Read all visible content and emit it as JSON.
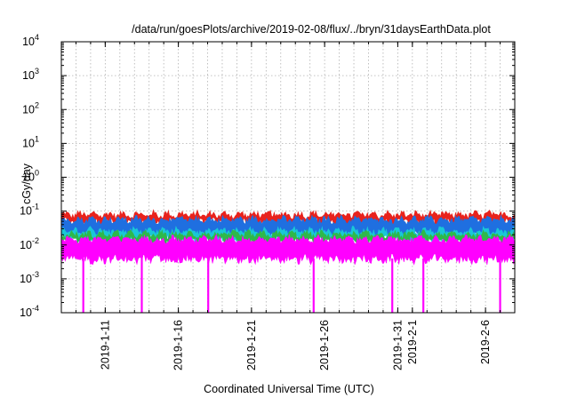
{
  "chart_data": {
    "type": "area",
    "title": "/data/run/goesPlots/archive/2019-02-08/flux/../bryn/31daysEarthData.plot",
    "xlabel": "Coordinated Universal Time (UTC)",
    "ylabel": "cGy/day",
    "yscale": "log",
    "ylim": [
      0.0001,
      10000
    ],
    "xlim": [
      "2019-01-08",
      "2019-02-08"
    ],
    "grid": true,
    "legend": "none",
    "y_ticks": [
      {
        "base": "10",
        "exp": "-4",
        "value": 0.0001
      },
      {
        "base": "10",
        "exp": "-3",
        "value": 0.001
      },
      {
        "base": "10",
        "exp": "-2",
        "value": 0.01
      },
      {
        "base": "10",
        "exp": "-1",
        "value": 0.1
      },
      {
        "base": "10",
        "exp": "0",
        "value": 1
      },
      {
        "base": "10",
        "exp": "1",
        "value": 10
      },
      {
        "base": "10",
        "exp": "2",
        "value": 100
      },
      {
        "base": "10",
        "exp": "3",
        "value": 1000
      },
      {
        "base": "10",
        "exp": "4",
        "value": 10000
      }
    ],
    "x_ticks": [
      {
        "label": "2019-1-11",
        "date": "2019-01-11"
      },
      {
        "label": "2019-1-16",
        "date": "2019-01-16"
      },
      {
        "label": "2019-1-21",
        "date": "2019-01-21"
      },
      {
        "label": "2019-1-26",
        "date": "2019-01-26"
      },
      {
        "label": "2019-1-31",
        "date": "2019-01-31"
      },
      {
        "label": "2019-2-1",
        "date": "2019-02-01"
      },
      {
        "label": "2019-2-6",
        "date": "2019-02-06"
      }
    ],
    "series": [
      {
        "color": "#e8221c",
        "band": [
          0.05,
          0.085
        ]
      },
      {
        "color": "#1f6fe0",
        "band": [
          0.02,
          0.06
        ]
      },
      {
        "color": "#19c8d6",
        "band": [
          0.016,
          0.028
        ]
      },
      {
        "color": "#2fb84a",
        "band": [
          0.014,
          0.022
        ]
      },
      {
        "color": "#ff00ff",
        "band": [
          0.004,
          0.016
        ]
      }
    ],
    "dropouts": [
      {
        "date": "2019-01-09T12:00",
        "min": 0.0001
      },
      {
        "date": "2019-01-13T12:00",
        "min": 0.0001
      },
      {
        "date": "2019-01-18T01:00",
        "min": 0.0001
      },
      {
        "date": "2019-01-25T06:00",
        "min": 0.0001
      },
      {
        "date": "2019-01-30T15:00",
        "min": 0.0001
      },
      {
        "date": "2019-02-01T18:00",
        "min": 0.0001
      },
      {
        "date": "2019-02-07T00:00",
        "min": 0.0001
      }
    ]
  }
}
